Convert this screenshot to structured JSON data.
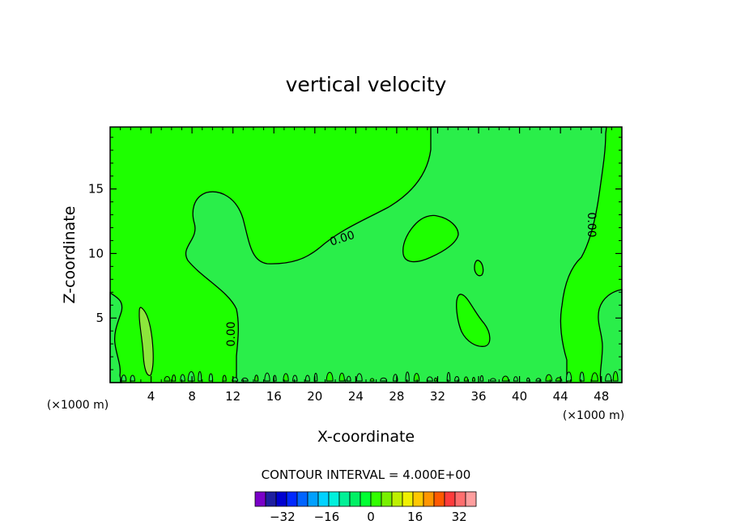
{
  "chart_data": {
    "type": "contour",
    "title": "vertical velocity",
    "xlabel": "X-coordinate",
    "ylabel": "Z-coordinate",
    "x_unit": "(×1000 m)",
    "x_ticks": [
      4,
      8,
      12,
      16,
      20,
      24,
      28,
      32,
      36,
      40,
      44,
      48
    ],
    "y_ticks": [
      5,
      10,
      15
    ],
    "xlim": [
      0,
      50
    ],
    "ylim": [
      0,
      19.8
    ],
    "contour_label": "0.00",
    "contour_interval_text": "CONTOUR INTERVAL = 4.000E+00",
    "colorbar": {
      "tick_labels": [
        "−32",
        "−16",
        "0",
        "16",
        "32"
      ],
      "tick_values": [
        -32,
        -16,
        0,
        16,
        32
      ],
      "levels": [
        -40,
        -36,
        -32,
        -28,
        -24,
        -20,
        -16,
        -12,
        -8,
        -4,
        0,
        4,
        8,
        12,
        16,
        20,
        24,
        28,
        32,
        36,
        40
      ],
      "colors": [
        "#7a00c8",
        "#1e1ea0",
        "#0000d0",
        "#0028ff",
        "#0064ff",
        "#00a0ff",
        "#00d2ff",
        "#00f0dc",
        "#00f096",
        "#00f064",
        "#00ff32",
        "#32ff00",
        "#78f000",
        "#bef000",
        "#f0f000",
        "#ffc800",
        "#ff9600",
        "#ff5a00",
        "#ff3c3c",
        "#ff6e6e",
        "#ff9e9e"
      ]
    },
    "fill_colors": {
      "background": "#1eff00",
      "light_region": "#2aee4a",
      "small_patch": "#8ce63c"
    }
  }
}
